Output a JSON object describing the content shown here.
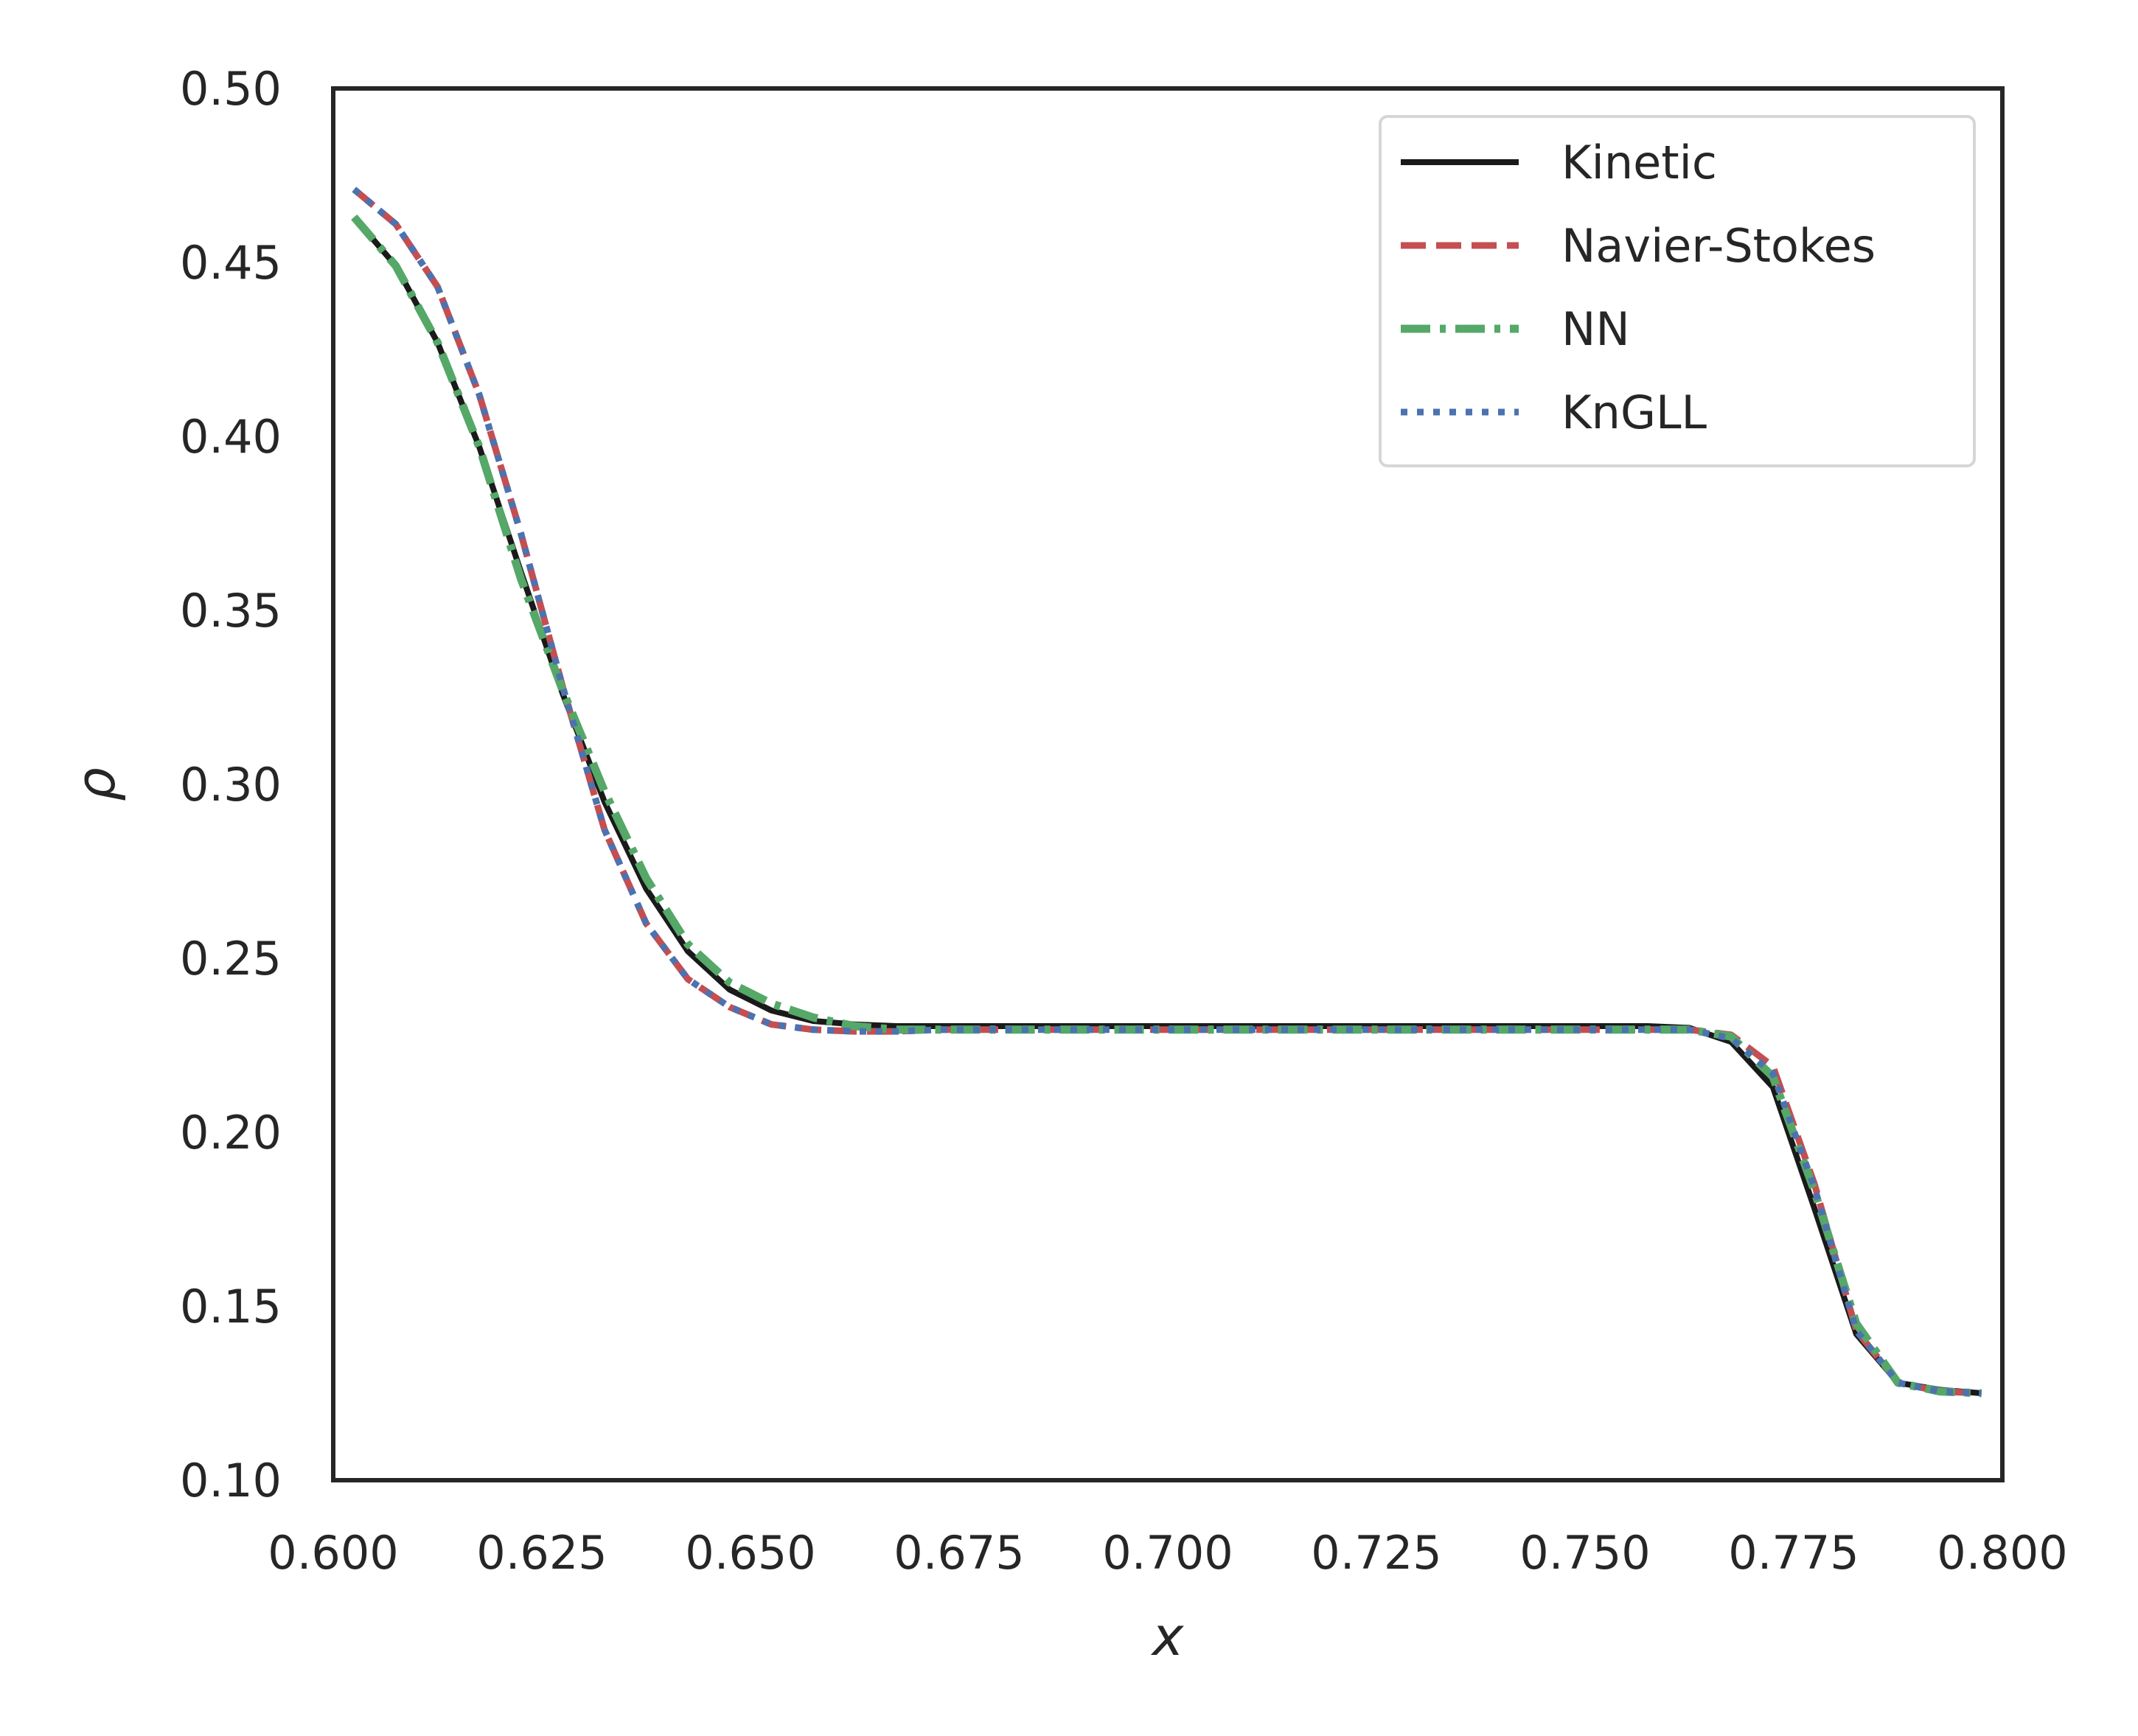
{
  "chart_data": {
    "type": "line",
    "title": "",
    "xlabel": "x",
    "ylabel": "ρ",
    "xlim": [
      0.6,
      0.8
    ],
    "ylim": [
      0.1,
      0.5
    ],
    "xticks": [
      "0.600",
      "0.625",
      "0.650",
      "0.675",
      "0.700",
      "0.725",
      "0.750",
      "0.775",
      "0.800"
    ],
    "yticks": [
      "0.10",
      "0.15",
      "0.20",
      "0.25",
      "0.30",
      "0.35",
      "0.40",
      "0.45",
      "0.50"
    ],
    "grid": false,
    "legend_position": "top-right",
    "series": [
      {
        "name": "Kinetic",
        "color": "#1a1a1a",
        "style": "solid",
        "x": [
          0.6025,
          0.6075,
          0.6125,
          0.6175,
          0.6225,
          0.6275,
          0.6325,
          0.6375,
          0.6425,
          0.6475,
          0.6525,
          0.6575,
          0.6625,
          0.6675,
          0.6725,
          0.6775,
          0.6825,
          0.6875,
          0.6925,
          0.6975,
          0.7025,
          0.7075,
          0.7125,
          0.7175,
          0.7225,
          0.7275,
          0.7325,
          0.7375,
          0.7425,
          0.7475,
          0.7525,
          0.7575,
          0.7625,
          0.7675,
          0.7725,
          0.7775,
          0.7825,
          0.7875,
          0.7925,
          0.7975
        ],
        "y": [
          0.463,
          0.449,
          0.427,
          0.397,
          0.361,
          0.326,
          0.295,
          0.27,
          0.252,
          0.241,
          0.235,
          0.232,
          0.231,
          0.2305,
          0.2305,
          0.2305,
          0.2305,
          0.2305,
          0.2305,
          0.2305,
          0.2305,
          0.2305,
          0.2305,
          0.2305,
          0.2305,
          0.2305,
          0.2305,
          0.2305,
          0.2305,
          0.2305,
          0.2305,
          0.2305,
          0.23,
          0.226,
          0.213,
          0.178,
          0.142,
          0.128,
          0.126,
          0.125
        ]
      },
      {
        "name": "Navier-Stokes",
        "color": "#c44e52",
        "style": "dashed",
        "x": [
          0.6025,
          0.6075,
          0.6125,
          0.6175,
          0.6225,
          0.6275,
          0.6325,
          0.6375,
          0.6425,
          0.6475,
          0.6525,
          0.6575,
          0.6625,
          0.6675,
          0.6725,
          0.6775,
          0.6825,
          0.6875,
          0.6925,
          0.6975,
          0.7025,
          0.7075,
          0.7125,
          0.7175,
          0.7225,
          0.7275,
          0.7325,
          0.7375,
          0.7425,
          0.7475,
          0.7525,
          0.7575,
          0.7625,
          0.7675,
          0.7725,
          0.7775,
          0.7825,
          0.7875,
          0.7925,
          0.7975
        ],
        "y": [
          0.471,
          0.461,
          0.443,
          0.412,
          0.372,
          0.328,
          0.287,
          0.26,
          0.244,
          0.236,
          0.231,
          0.2295,
          0.229,
          0.229,
          0.2295,
          0.2295,
          0.2295,
          0.2295,
          0.2295,
          0.2295,
          0.2295,
          0.2295,
          0.2295,
          0.2295,
          0.2295,
          0.2295,
          0.2295,
          0.2295,
          0.2295,
          0.2295,
          0.2295,
          0.2295,
          0.2295,
          0.228,
          0.219,
          0.185,
          0.143,
          0.128,
          0.1255,
          0.125
        ]
      },
      {
        "name": "NN",
        "color": "#55a868",
        "style": "dashdot",
        "x": [
          0.6025,
          0.6075,
          0.6125,
          0.6175,
          0.6225,
          0.6275,
          0.6325,
          0.6375,
          0.6425,
          0.6475,
          0.6525,
          0.6575,
          0.6625,
          0.6675,
          0.6725,
          0.6775,
          0.6825,
          0.6875,
          0.6925,
          0.6975,
          0.7025,
          0.7075,
          0.7125,
          0.7175,
          0.7225,
          0.7275,
          0.7325,
          0.7375,
          0.7425,
          0.7475,
          0.7525,
          0.7575,
          0.7625,
          0.7675,
          0.7725,
          0.7775,
          0.7825,
          0.7875,
          0.7925,
          0.7975
        ],
        "y": [
          0.463,
          0.449,
          0.427,
          0.397,
          0.359,
          0.327,
          0.298,
          0.273,
          0.254,
          0.243,
          0.237,
          0.233,
          0.2305,
          0.2295,
          0.2295,
          0.2295,
          0.2295,
          0.2295,
          0.2295,
          0.2295,
          0.2295,
          0.2295,
          0.2295,
          0.2295,
          0.2295,
          0.2295,
          0.2295,
          0.2295,
          0.2295,
          0.2295,
          0.2295,
          0.2295,
          0.2295,
          0.2275,
          0.216,
          0.183,
          0.145,
          0.128,
          0.1255,
          0.125
        ]
      },
      {
        "name": "KnGLL",
        "color": "#4c72b0",
        "style": "dotted",
        "x": [
          0.6025,
          0.6075,
          0.6125,
          0.6175,
          0.6225,
          0.6275,
          0.6325,
          0.6375,
          0.6425,
          0.6475,
          0.6525,
          0.6575,
          0.6625,
          0.6675,
          0.6725,
          0.6775,
          0.6825,
          0.6875,
          0.6925,
          0.6975,
          0.7025,
          0.7075,
          0.7125,
          0.7175,
          0.7225,
          0.7275,
          0.7325,
          0.7375,
          0.7425,
          0.7475,
          0.7525,
          0.7575,
          0.7625,
          0.7675,
          0.7725,
          0.7775,
          0.7825,
          0.7875,
          0.7925,
          0.7975
        ],
        "y": [
          0.471,
          0.461,
          0.443,
          0.412,
          0.372,
          0.328,
          0.287,
          0.26,
          0.244,
          0.236,
          0.231,
          0.2295,
          0.229,
          0.229,
          0.2295,
          0.2295,
          0.2295,
          0.2295,
          0.2295,
          0.2295,
          0.2295,
          0.2295,
          0.2295,
          0.2295,
          0.2295,
          0.2295,
          0.2295,
          0.2295,
          0.2295,
          0.2295,
          0.2295,
          0.2295,
          0.2295,
          0.227,
          0.217,
          0.184,
          0.143,
          0.128,
          0.1255,
          0.125
        ]
      }
    ]
  }
}
